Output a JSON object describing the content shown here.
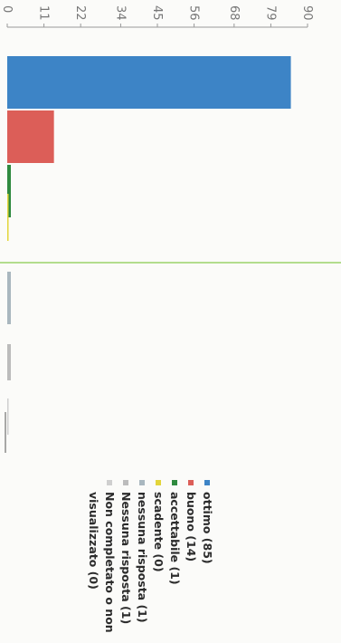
{
  "chart_data": {
    "type": "bar",
    "orientation": "horizontal",
    "categories": [
      "ottimo (85)",
      "buono (14)",
      "accettabile (1)",
      "scadente (0)",
      "nessuna risposta (1)",
      "Nessuna risposta (1)",
      "Non completato o non visualizzato (0)"
    ],
    "values": [
      85,
      14,
      1,
      0,
      1,
      1,
      0
    ],
    "colors": [
      "#3d84c6",
      "#dc5e58",
      "#2f8a3f",
      "#e3d53a",
      "#a9b7bf",
      "#bcbcbc",
      "#cfcfcf"
    ],
    "x_ticks": [
      "0",
      "11",
      "22",
      "34",
      "45",
      "56",
      "68",
      "79",
      "90"
    ],
    "xlim": [
      0,
      90
    ],
    "grid": false,
    "legend_position": "bottom",
    "reference_line_color": "#9bd36a",
    "rotation": "90deg clockwise"
  }
}
